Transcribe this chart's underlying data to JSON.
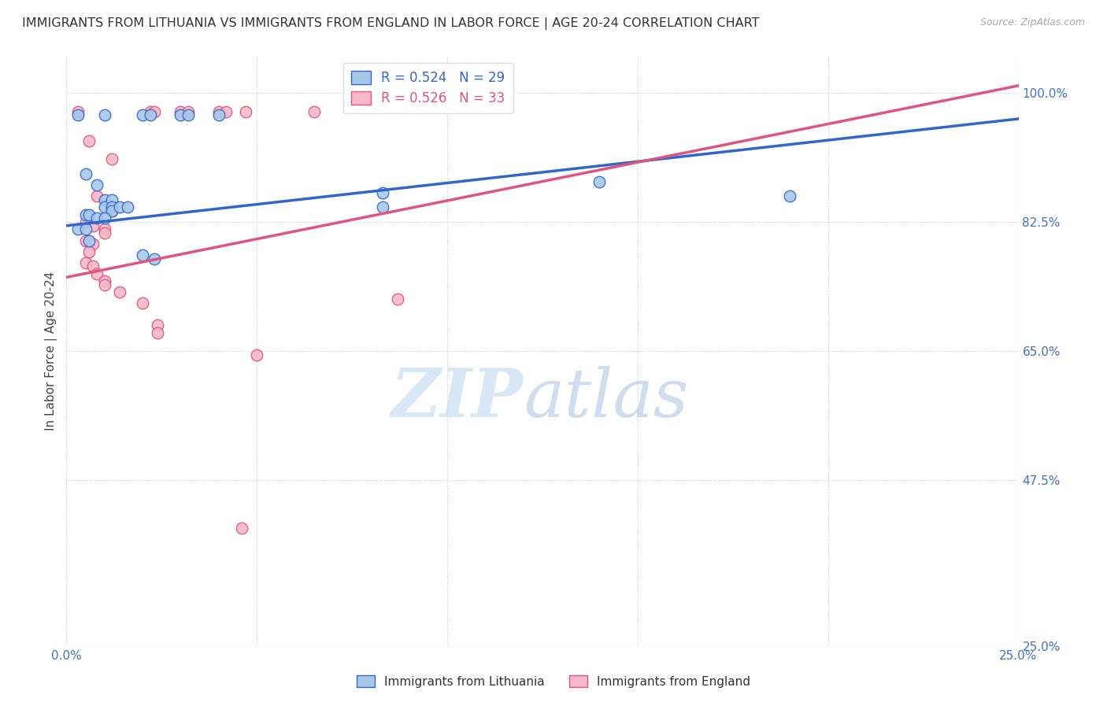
{
  "title": "IMMIGRANTS FROM LITHUANIA VS IMMIGRANTS FROM ENGLAND IN LABOR FORCE | AGE 20-24 CORRELATION CHART",
  "source": "Source: ZipAtlas.com",
  "xlabel": "",
  "ylabel": "In Labor Force | Age 20-24",
  "xlim": [
    0.0,
    0.25
  ],
  "ylim": [
    0.25,
    1.05
  ],
  "xticks": [
    0.0,
    0.05,
    0.1,
    0.15,
    0.2,
    0.25
  ],
  "yticks": [
    0.25,
    0.475,
    0.65,
    0.825,
    1.0
  ],
  "xtick_labels": [
    "0.0%",
    "",
    "",
    "",
    "",
    "25.0%"
  ],
  "ytick_labels": [
    "25.0%",
    "47.5%",
    "65.0%",
    "82.5%",
    "100.0%"
  ],
  "legend_blue_r": "R = 0.524",
  "legend_blue_n": "N = 29",
  "legend_pink_r": "R = 0.526",
  "legend_pink_n": "N = 33",
  "blue_scatter": [
    [
      0.003,
      0.97
    ],
    [
      0.01,
      0.97
    ],
    [
      0.02,
      0.97
    ],
    [
      0.022,
      0.97
    ],
    [
      0.03,
      0.97
    ],
    [
      0.032,
      0.97
    ],
    [
      0.04,
      0.97
    ],
    [
      0.005,
      0.89
    ],
    [
      0.008,
      0.875
    ],
    [
      0.01,
      0.855
    ],
    [
      0.01,
      0.845
    ],
    [
      0.012,
      0.855
    ],
    [
      0.012,
      0.845
    ],
    [
      0.012,
      0.84
    ],
    [
      0.014,
      0.845
    ],
    [
      0.016,
      0.845
    ],
    [
      0.005,
      0.835
    ],
    [
      0.006,
      0.835
    ],
    [
      0.008,
      0.83
    ],
    [
      0.01,
      0.83
    ],
    [
      0.003,
      0.815
    ],
    [
      0.005,
      0.815
    ],
    [
      0.006,
      0.8
    ],
    [
      0.02,
      0.78
    ],
    [
      0.023,
      0.775
    ],
    [
      0.083,
      0.865
    ],
    [
      0.19,
      0.86
    ],
    [
      0.083,
      0.845
    ],
    [
      0.14,
      0.88
    ]
  ],
  "pink_scatter": [
    [
      0.003,
      0.975
    ],
    [
      0.022,
      0.975
    ],
    [
      0.023,
      0.975
    ],
    [
      0.03,
      0.975
    ],
    [
      0.032,
      0.975
    ],
    [
      0.04,
      0.975
    ],
    [
      0.042,
      0.975
    ],
    [
      0.047,
      0.975
    ],
    [
      0.065,
      0.975
    ],
    [
      0.006,
      0.935
    ],
    [
      0.012,
      0.91
    ],
    [
      0.008,
      0.86
    ],
    [
      0.012,
      0.845
    ],
    [
      0.012,
      0.84
    ],
    [
      0.005,
      0.825
    ],
    [
      0.007,
      0.82
    ],
    [
      0.01,
      0.815
    ],
    [
      0.01,
      0.81
    ],
    [
      0.005,
      0.8
    ],
    [
      0.007,
      0.795
    ],
    [
      0.006,
      0.785
    ],
    [
      0.005,
      0.77
    ],
    [
      0.007,
      0.765
    ],
    [
      0.008,
      0.755
    ],
    [
      0.01,
      0.745
    ],
    [
      0.01,
      0.74
    ],
    [
      0.014,
      0.73
    ],
    [
      0.02,
      0.715
    ],
    [
      0.024,
      0.685
    ],
    [
      0.024,
      0.675
    ],
    [
      0.087,
      0.72
    ],
    [
      0.05,
      0.645
    ],
    [
      0.046,
      0.41
    ]
  ],
  "blue_line_x": [
    0.0,
    0.25
  ],
  "blue_line_y": [
    0.82,
    0.965
  ],
  "pink_line_x": [
    0.0,
    0.25
  ],
  "pink_line_y": [
    0.75,
    1.01
  ],
  "dot_size": 110,
  "blue_color": "#a8c8e8",
  "pink_color": "#f4b8c8",
  "blue_line_color": "#3366cc",
  "pink_line_color": "#e05580",
  "watermark_zip": "ZIP",
  "watermark_atlas": "atlas",
  "background_color": "#ffffff",
  "title_fontsize": 11.5,
  "ylabel_fontsize": 11,
  "source_fontsize": 9,
  "tick_color": "#4472c4",
  "grid_color": "#c8c8c8"
}
